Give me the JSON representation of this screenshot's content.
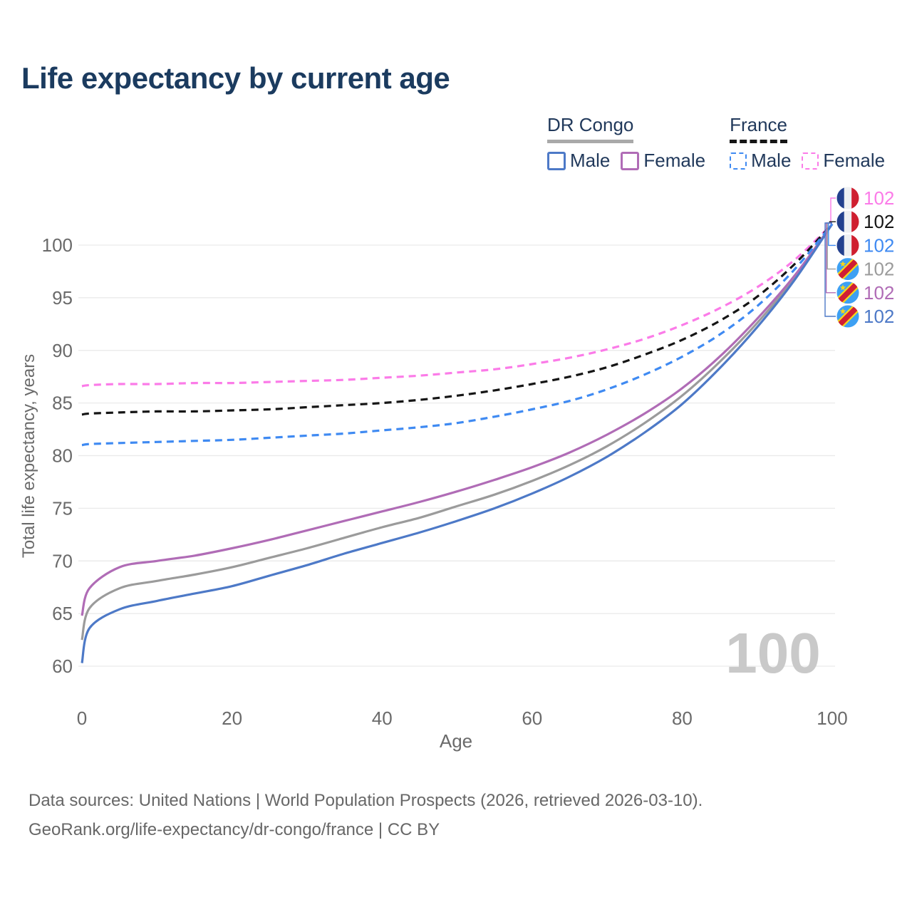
{
  "title": "Life expectancy by current age",
  "legend": {
    "groups": [
      {
        "label": "DR Congo",
        "line_style": "solid",
        "underline_color": "#a9a9a9",
        "items": [
          {
            "label": "Male",
            "color": "#4d79c7"
          },
          {
            "label": "Female",
            "color": "#b06cb6"
          }
        ]
      },
      {
        "label": "France",
        "line_style": "dashed",
        "underline_color": "#151515",
        "items": [
          {
            "label": "Male",
            "color": "#3f8af2"
          },
          {
            "label": "Female",
            "color": "#fb7be8"
          }
        ]
      }
    ]
  },
  "chart_data": {
    "type": "line",
    "title": "Life expectancy by current age",
    "xlabel": "Age",
    "ylabel": "Total life expectancy, years",
    "x_ticks": [
      0,
      20,
      40,
      60,
      80,
      100
    ],
    "y_ticks": [
      60,
      65,
      70,
      75,
      80,
      85,
      90,
      95,
      100
    ],
    "xlim": [
      0,
      100
    ],
    "ylim": [
      60,
      102
    ],
    "grid": "horizontal",
    "grid_color": "#e9e9e9",
    "axis_text_color": "#6a6a6a",
    "watermark": "100",
    "watermark_color": "#c9c9c9",
    "x": [
      0,
      1,
      5,
      10,
      15,
      20,
      25,
      30,
      35,
      40,
      45,
      50,
      55,
      60,
      65,
      70,
      75,
      80,
      85,
      90,
      95,
      100
    ],
    "series": [
      {
        "id": "france-female",
        "name": "France Female",
        "country": "France",
        "sex": "Female",
        "color": "#fb7be8",
        "dashed": true,
        "flag_icon": "france-flag-icon",
        "end_label": "102",
        "values": [
          86.6,
          86.7,
          86.8,
          86.8,
          86.9,
          86.9,
          87.0,
          87.1,
          87.2,
          87.4,
          87.6,
          87.9,
          88.2,
          88.7,
          89.3,
          90.1,
          91.1,
          92.4,
          94.0,
          96.0,
          98.6,
          102
        ]
      },
      {
        "id": "france-both",
        "name": "France Both sexes",
        "country": "France",
        "sex": "Both sexes",
        "color": "#151515",
        "dashed": true,
        "flag_icon": "france-flag-icon",
        "end_label": "102",
        "values": [
          83.9,
          84.0,
          84.1,
          84.2,
          84.2,
          84.3,
          84.4,
          84.6,
          84.8,
          85.0,
          85.3,
          85.7,
          86.2,
          86.8,
          87.5,
          88.4,
          89.6,
          91.0,
          92.8,
          95.1,
          98.2,
          102
        ]
      },
      {
        "id": "france-male",
        "name": "France Male",
        "country": "France",
        "sex": "Male",
        "color": "#3f8af2",
        "dashed": true,
        "flag_icon": "france-flag-icon",
        "end_label": "102",
        "values": [
          81.0,
          81.1,
          81.2,
          81.3,
          81.4,
          81.5,
          81.7,
          81.9,
          82.1,
          82.4,
          82.7,
          83.1,
          83.7,
          84.4,
          85.2,
          86.3,
          87.7,
          89.4,
          91.5,
          94.2,
          97.7,
          102
        ]
      },
      {
        "id": "drcongo-both",
        "name": "DR Congo Both sexes",
        "country": "DR Congo",
        "sex": "Both sexes",
        "color": "#9b9b9b",
        "dashed": false,
        "flag_icon": "dr-congo-flag-icon",
        "end_label": "102",
        "values": [
          62.5,
          65.5,
          67.4,
          68.1,
          68.7,
          69.4,
          70.3,
          71.2,
          72.2,
          73.2,
          74.1,
          75.2,
          76.3,
          77.6,
          79.1,
          80.9,
          83.1,
          85.7,
          88.9,
          92.6,
          96.9,
          102
        ]
      },
      {
        "id": "drcongo-female",
        "name": "DR Congo Female",
        "country": "DR Congo",
        "sex": "Female",
        "color": "#b06cb6",
        "dashed": false,
        "flag_icon": "dr-congo-flag-icon",
        "end_label": "102",
        "values": [
          64.8,
          67.4,
          69.4,
          70.0,
          70.5,
          71.2,
          72.0,
          72.9,
          73.8,
          74.7,
          75.6,
          76.6,
          77.7,
          78.9,
          80.3,
          82.0,
          84.0,
          86.4,
          89.4,
          93.0,
          97.1,
          102
        ]
      },
      {
        "id": "drcongo-male",
        "name": "DR Congo Male",
        "country": "DR Congo",
        "sex": "Male",
        "color": "#4d79c7",
        "dashed": false,
        "flag_icon": "dr-congo-flag-icon",
        "end_label": "102",
        "values": [
          60.3,
          63.6,
          65.4,
          66.2,
          66.9,
          67.6,
          68.6,
          69.6,
          70.7,
          71.7,
          72.7,
          73.8,
          75.0,
          76.4,
          78.0,
          79.9,
          82.2,
          84.9,
          88.3,
          92.2,
          96.7,
          102
        ]
      }
    ]
  },
  "footer": {
    "line1": "Data sources: United Nations | World Population Prospects (2026, retrieved 2026-03-10).",
    "line2": "GeoRank.org/life-expectancy/dr-congo/france | CC BY"
  }
}
